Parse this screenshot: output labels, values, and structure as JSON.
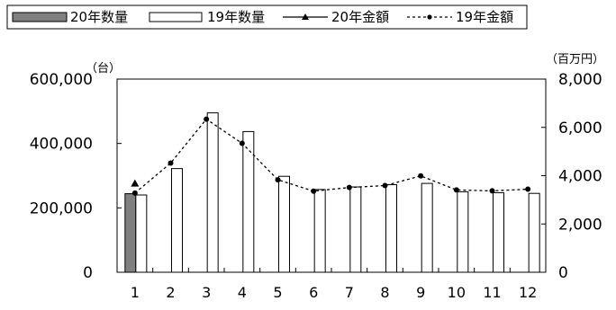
{
  "chart_data": {
    "type": "bar",
    "categories": [
      "1",
      "2",
      "3",
      "4",
      "5",
      "6",
      "7",
      "8",
      "9",
      "10",
      "11",
      "12"
    ],
    "series": [
      {
        "name": "20年数量",
        "kind": "bar",
        "axis": "left",
        "values": [
          244000,
          null,
          null,
          null,
          null,
          null,
          null,
          null,
          null,
          null,
          null,
          null
        ]
      },
      {
        "name": "19年数量",
        "kind": "bar",
        "axis": "left",
        "values": [
          240000,
          322000,
          495000,
          437000,
          298000,
          257000,
          265000,
          272000,
          276000,
          250000,
          247000,
          245000
        ]
      },
      {
        "name": "20年金額",
        "kind": "line",
        "axis": "right",
        "values": [
          3660,
          null,
          null,
          null,
          null,
          null,
          null,
          null,
          null,
          null,
          null,
          null
        ]
      },
      {
        "name": "19年金額",
        "kind": "line",
        "axis": "right",
        "values": [
          3280,
          4520,
          6340,
          5340,
          3830,
          3360,
          3510,
          3590,
          3990,
          3410,
          3370,
          3440
        ]
      }
    ],
    "y_left": {
      "unit": "（台）",
      "ylim": [
        0,
        600000
      ],
      "ticks": [
        0,
        200000,
        400000,
        600000
      ],
      "tick_labels": [
        "0",
        "200,000",
        "400,000",
        "600,000"
      ]
    },
    "y_right": {
      "unit": "（百万円）",
      "ylim": [
        0,
        8000
      ],
      "ticks": [
        0,
        2000,
        4000,
        6000,
        8000
      ],
      "tick_labels": [
        "0",
        "2,000",
        "4,000",
        "6,000",
        "8,000"
      ]
    },
    "legend_position": "top-left, boxed",
    "colors": {
      "bar_2020": "#808080",
      "bar_2019": "#ffffff",
      "line": "#000000"
    },
    "grid": false
  }
}
